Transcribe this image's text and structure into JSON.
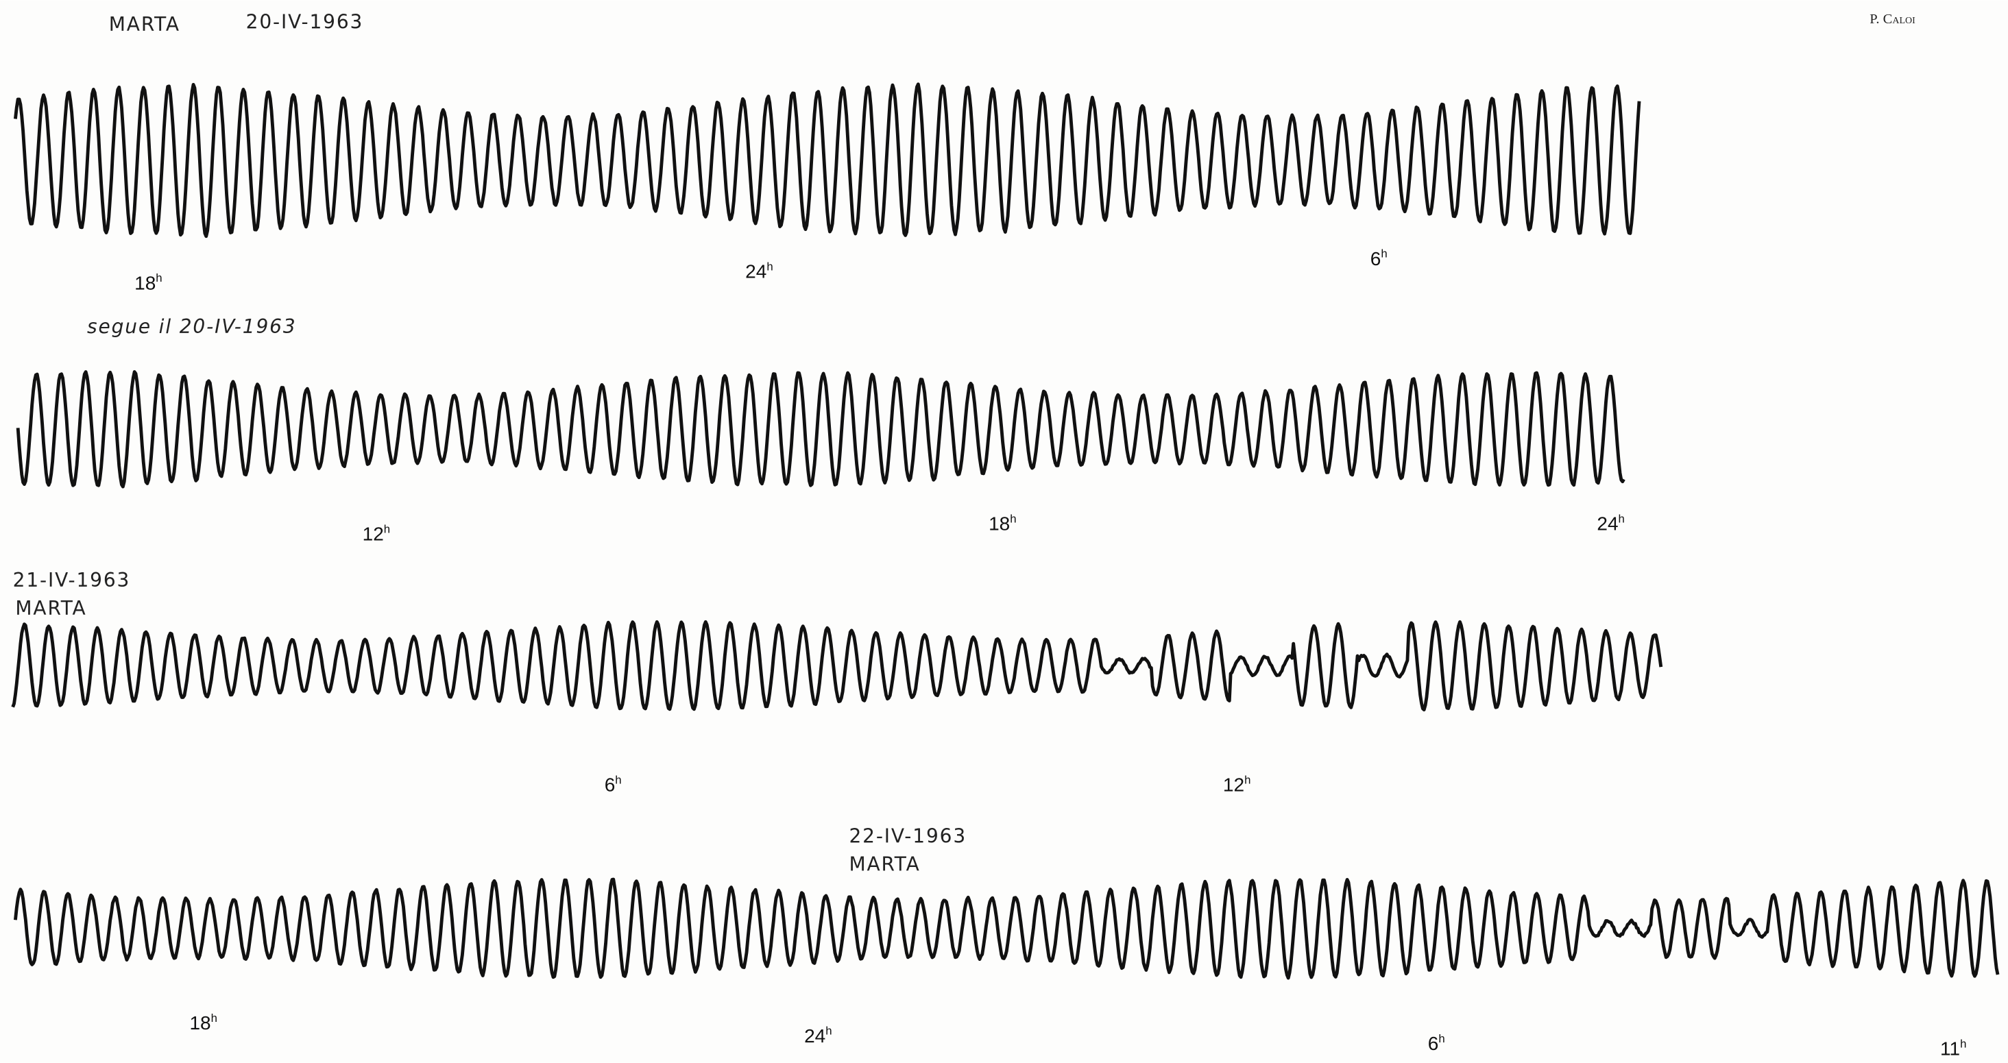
{
  "header": {
    "station": "MARTA",
    "date": "20-IV-1963",
    "author": "P. Caloi"
  },
  "records": [
    {
      "hours": [
        {
          "hour": "18",
          "unit": "h"
        },
        {
          "hour": "24",
          "unit": "h"
        },
        {
          "hour": "6",
          "unit": "h"
        }
      ]
    },
    {
      "note": "segue il 20-IV-1963",
      "hours": [
        {
          "hour": "12",
          "unit": "h"
        },
        {
          "hour": "18",
          "unit": "h"
        },
        {
          "hour": "24",
          "unit": "h"
        }
      ]
    },
    {
      "date": "21-IV-1963",
      "station": "MARTA",
      "hours": [
        {
          "hour": "6",
          "unit": "h"
        },
        {
          "hour": "12",
          "unit": "h"
        }
      ]
    },
    {
      "date": "22-IV-1963",
      "station": "MARTA",
      "hours": [
        {
          "hour": "18",
          "unit": "h"
        },
        {
          "hour": "24",
          "unit": "h"
        },
        {
          "hour": "6",
          "unit": "h"
        },
        {
          "hour": "11",
          "unit": "h"
        }
      ]
    }
  ]
}
